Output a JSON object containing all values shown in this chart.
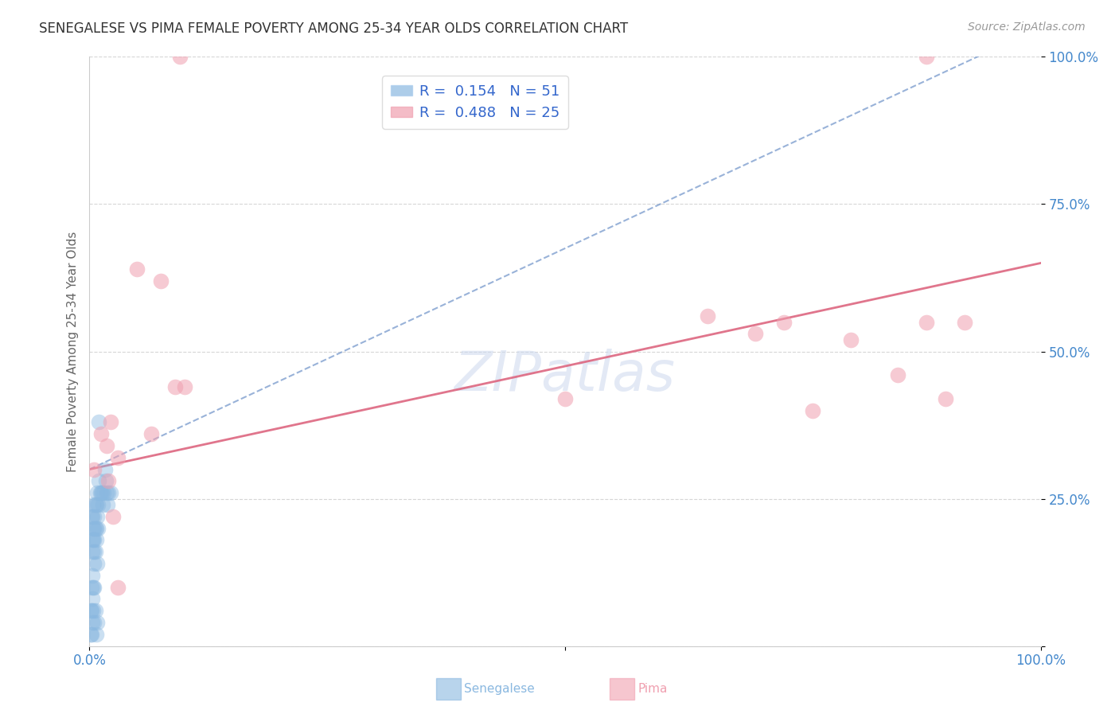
{
  "title": "SENEGALESE VS PIMA FEMALE POVERTY AMONG 25-34 YEAR OLDS CORRELATION CHART",
  "source": "Source: ZipAtlas.com",
  "ylabel": "Female Poverty Among 25-34 Year Olds",
  "xlim": [
    0,
    1
  ],
  "ylim": [
    0,
    1
  ],
  "legend_blue_label": "R =  0.154   N = 51",
  "legend_pink_label": "R =  0.488   N = 25",
  "senegalese_color": "#8ab8e0",
  "pima_color": "#f0a0b0",
  "regression_blue_color": "#7799cc",
  "regression_pink_color": "#dd6680",
  "background_color": "#ffffff",
  "grid_color": "#cccccc",
  "title_color": "#333333",
  "axis_label_color": "#666666",
  "tick_label_color": "#4488cc",
  "blue_line_intercept": 0.3,
  "blue_line_slope": 0.75,
  "pink_line_intercept": 0.3,
  "pink_line_slope": 0.35,
  "senegalese_x": [
    0.002,
    0.003,
    0.003,
    0.004,
    0.004,
    0.005,
    0.005,
    0.005,
    0.005,
    0.006,
    0.006,
    0.007,
    0.007,
    0.008,
    0.008,
    0.009,
    0.009,
    0.01,
    0.01,
    0.011,
    0.012,
    0.013,
    0.014,
    0.015,
    0.016,
    0.017,
    0.018,
    0.019,
    0.02,
    0.022,
    0.003,
    0.004,
    0.005,
    0.006,
    0.007,
    0.008,
    0.002,
    0.003,
    0.004,
    0.005,
    0.001,
    0.002,
    0.003,
    0.004,
    0.005,
    0.006,
    0.007,
    0.008,
    0.001,
    0.002,
    0.003
  ],
  "senegalese_y": [
    0.22,
    0.18,
    0.22,
    0.2,
    0.24,
    0.18,
    0.2,
    0.16,
    0.22,
    0.2,
    0.24,
    0.2,
    0.24,
    0.22,
    0.26,
    0.2,
    0.24,
    0.38,
    0.28,
    0.26,
    0.26,
    0.26,
    0.24,
    0.26,
    0.3,
    0.28,
    0.26,
    0.24,
    0.26,
    0.26,
    0.16,
    0.18,
    0.14,
    0.16,
    0.18,
    0.14,
    0.1,
    0.12,
    0.1,
    0.1,
    0.06,
    0.06,
    0.08,
    0.06,
    0.04,
    0.06,
    0.02,
    0.04,
    0.02,
    0.02,
    0.04
  ],
  "pima_x": [
    0.005,
    0.012,
    0.018,
    0.022,
    0.03,
    0.05,
    0.065,
    0.075,
    0.09,
    0.5,
    0.65,
    0.7,
    0.73,
    0.76,
    0.8,
    0.85,
    0.88,
    0.9,
    0.92,
    0.1,
    0.095,
    0.88,
    0.03,
    0.025,
    0.02
  ],
  "pima_y": [
    0.3,
    0.36,
    0.34,
    0.38,
    0.32,
    0.64,
    0.36,
    0.62,
    0.44,
    0.42,
    0.56,
    0.53,
    0.55,
    0.4,
    0.52,
    0.46,
    0.55,
    0.42,
    0.55,
    0.44,
    1.0,
    1.0,
    0.1,
    0.22,
    0.28
  ]
}
